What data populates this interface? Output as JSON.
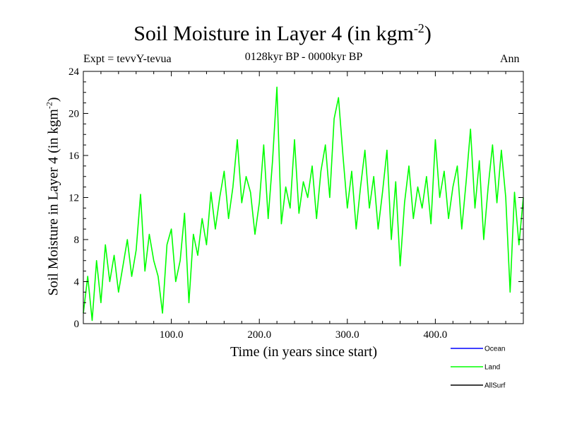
{
  "chart_data": {
    "type": "line",
    "title": "Soil Moisture in Layer 4 (in kgm",
    "title_sup": "-2",
    "title_close": ")",
    "subtitle": "0128kyr BP - 0000kyr BP",
    "expt_label": "Expt = tevvY-tevua",
    "season_label": "Ann",
    "xlabel": "Time (in years since start)",
    "ylabel": "Soil Moisture in Layer 4 (in kgm",
    "ylabel_sup": "-2",
    "ylabel_close": ")",
    "xlim": [
      0,
      500
    ],
    "ylim": [
      0,
      24
    ],
    "xticks": [
      100,
      200,
      300,
      400
    ],
    "xtick_labels": [
      "100.0",
      "200.0",
      "300.0",
      "400.0"
    ],
    "yticks": [
      0,
      4,
      8,
      12,
      16,
      20,
      24
    ],
    "ytick_labels": [
      "0",
      "4",
      "8",
      "12",
      "16",
      "20",
      "24"
    ],
    "legend": [
      {
        "name": "Ocean",
        "color": "#0000ff"
      },
      {
        "name": "Land",
        "color": "#00ff00"
      },
      {
        "name": "AllSurf",
        "color": "#000000"
      }
    ],
    "series": [
      {
        "name": "Land",
        "color": "#00ff00",
        "x": [
          0,
          5,
          10,
          15,
          20,
          25,
          30,
          35,
          40,
          45,
          50,
          55,
          60,
          65,
          70,
          75,
          80,
          85,
          90,
          95,
          100,
          105,
          110,
          115,
          120,
          125,
          130,
          135,
          140,
          145,
          150,
          155,
          160,
          165,
          170,
          175,
          180,
          185,
          190,
          195,
          200,
          205,
          210,
          215,
          220,
          225,
          230,
          235,
          240,
          245,
          250,
          255,
          260,
          265,
          270,
          275,
          280,
          285,
          290,
          295,
          300,
          305,
          310,
          315,
          320,
          325,
          330,
          335,
          340,
          345,
          350,
          355,
          360,
          365,
          370,
          375,
          380,
          385,
          390,
          395,
          400,
          405,
          410,
          415,
          420,
          425,
          430,
          435,
          440,
          445,
          450,
          455,
          460,
          465,
          470,
          475,
          480,
          485,
          490,
          495,
          500
        ],
        "values": [
          1.0,
          4.5,
          0.3,
          6.0,
          2.0,
          7.5,
          4.0,
          6.5,
          3.0,
          5.5,
          8.0,
          4.5,
          7.0,
          12.3,
          5.0,
          8.5,
          6.0,
          4.5,
          1.0,
          7.5,
          9.0,
          4.0,
          6.0,
          10.5,
          2.0,
          8.5,
          6.5,
          10.0,
          7.5,
          12.5,
          9.0,
          12.0,
          14.5,
          10.0,
          13.0,
          17.5,
          11.5,
          14.0,
          12.5,
          8.5,
          11.5,
          17.0,
          10.0,
          15.5,
          22.5,
          9.5,
          13.0,
          11.0,
          17.5,
          10.5,
          13.5,
          12.0,
          15.0,
          10.0,
          14.5,
          17.0,
          12.0,
          19.5,
          21.5,
          16.0,
          11.0,
          14.5,
          9.0,
          13.0,
          16.5,
          11.0,
          14.0,
          9.0,
          12.5,
          16.5,
          8.0,
          13.5,
          5.5,
          11.5,
          15.0,
          10.0,
          13.0,
          11.0,
          14.0,
          9.5,
          17.5,
          12.0,
          14.5,
          10.0,
          13.0,
          15.0,
          9.0,
          13.5,
          18.5,
          11.0,
          15.5,
          8.0,
          13.0,
          17.0,
          11.5,
          16.5,
          12.0,
          3.0,
          12.5,
          7.5,
          12.0
        ]
      }
    ]
  }
}
